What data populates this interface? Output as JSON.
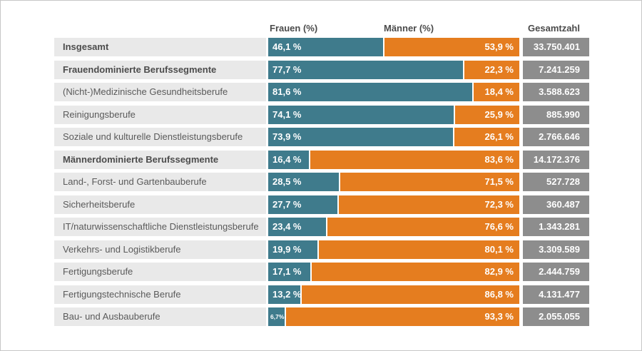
{
  "headers": {
    "frauen": "Frauen (%)",
    "maenner": "Männer (%)",
    "gesamtzahl": "Gesamtzahl"
  },
  "colors": {
    "frauen_bar": "#3f7b8c",
    "maenner_bar": "#e57d1f",
    "total_box": "#8d8d8d",
    "row_label_bg": "#e9e9e9",
    "header_text": "#4a4a4a",
    "value_text": "#ffffff"
  },
  "rows": [
    {
      "label": "Insgesamt",
      "bold": true,
      "frauen": 46.1,
      "frauen_label": "46,1 %",
      "maenner_label": "53,9 %",
      "total": "33.750.401"
    },
    {
      "label": "Frauendominierte Berufssegmente",
      "bold": true,
      "frauen": 77.7,
      "frauen_label": "77,7 %",
      "maenner_label": "22,3 %",
      "total": "7.241.259"
    },
    {
      "label": "(Nicht-)Medizinische Gesundheitsberufe",
      "bold": false,
      "frauen": 81.6,
      "frauen_label": "81,6 %",
      "maenner_label": "18,4 %",
      "total": "3.588.623"
    },
    {
      "label": "Reinigungsberufe",
      "bold": false,
      "frauen": 74.1,
      "frauen_label": "74,1 %",
      "maenner_label": "25,9 %",
      "total": "885.990"
    },
    {
      "label": "Soziale und kulturelle Dienstleistungsberufe",
      "bold": false,
      "frauen": 73.9,
      "frauen_label": "73,9 %",
      "maenner_label": "26,1 %",
      "total": "2.766.646"
    },
    {
      "label": "Männerdominierte Berufssegmente",
      "bold": true,
      "frauen": 16.4,
      "frauen_label": "16,4 %",
      "maenner_label": "83,6 %",
      "total": "14.172.376"
    },
    {
      "label": "Land-, Forst- und Gartenbauberufe",
      "bold": false,
      "frauen": 28.5,
      "frauen_label": "28,5 %",
      "maenner_label": "71,5 %",
      "total": "527.728"
    },
    {
      "label": "Sicherheitsberufe",
      "bold": false,
      "frauen": 27.7,
      "frauen_label": "27,7 %",
      "maenner_label": "72,3 %",
      "total": "360.487"
    },
    {
      "label": "IT/naturwissenschaftliche Dienstleistungsberufe",
      "bold": false,
      "frauen": 23.4,
      "frauen_label": "23,4 %",
      "maenner_label": "76,6 %",
      "total": "1.343.281"
    },
    {
      "label": "Verkehrs- und Logistikberufe",
      "bold": false,
      "frauen": 19.9,
      "frauen_label": "19,9 %",
      "maenner_label": "80,1 %",
      "total": "3.309.589"
    },
    {
      "label": "Fertigungsberufe",
      "bold": false,
      "frauen": 17.1,
      "frauen_label": "17,1 %",
      "maenner_label": "82,9 %",
      "total": "2.444.759"
    },
    {
      "label": "Fertigungstechnische Berufe",
      "bold": false,
      "frauen": 13.2,
      "frauen_label": "13,2 %",
      "maenner_label": "86,8 %",
      "total": "4.131.477"
    },
    {
      "label": "Bau- und Ausbauberufe",
      "bold": false,
      "frauen": 6.7,
      "frauen_label": "6,7%",
      "maenner_label": "93,3 %",
      "total": "2.055.055"
    }
  ],
  "chart_data": {
    "type": "bar",
    "orientation": "horizontal",
    "stacked": true,
    "title": "",
    "xlabel": "",
    "ylabel": "",
    "xlim": [
      0,
      100
    ],
    "grid": false,
    "legend_position": "top-as-column-headers",
    "categories": [
      "Insgesamt",
      "Frauendominierte Berufssegmente",
      "(Nicht-)Medizinische Gesundheitsberufe",
      "Reinigungsberufe",
      "Soziale und kulturelle Dienstleistungsberufe",
      "Männerdominierte Berufssegmente",
      "Land-, Forst- und Gartenbauberufe",
      "Sicherheitsberufe",
      "IT/naturwissenschaftliche Dienstleistungsberufe",
      "Verkehrs- und Logistikberufe",
      "Fertigungsberufe",
      "Fertigungstechnische Berufe",
      "Bau- und Ausbauberufe"
    ],
    "bold_categories": [
      "Insgesamt",
      "Frauendominierte Berufssegmente",
      "Männerdominierte Berufssegmente"
    ],
    "series": [
      {
        "name": "Frauen (%)",
        "color": "#3f7b8c",
        "values": [
          46.1,
          77.7,
          81.6,
          74.1,
          73.9,
          16.4,
          28.5,
          27.7,
          23.4,
          19.9,
          17.1,
          13.2,
          6.7
        ]
      },
      {
        "name": "Männer (%)",
        "color": "#e57d1f",
        "values": [
          53.9,
          22.3,
          18.4,
          25.9,
          26.1,
          83.6,
          71.5,
          72.3,
          76.6,
          80.1,
          82.9,
          86.8,
          93.3
        ]
      }
    ],
    "totals_column": {
      "name": "Gesamtzahl",
      "color": "#8d8d8d",
      "values": [
        "33.750.401",
        "7.241.259",
        "3.588.623",
        "885.990",
        "2.766.646",
        "14.172.376",
        "527.728",
        "360.487",
        "1.343.281",
        "3.309.589",
        "2.444.759",
        "4.131.477",
        "2.055.055"
      ]
    }
  }
}
